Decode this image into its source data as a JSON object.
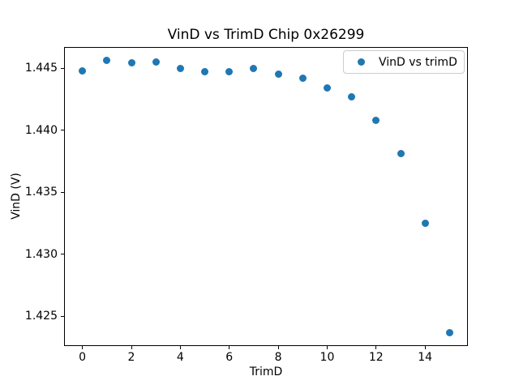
{
  "title": "VinD vs TrimD Chip 0x26299",
  "chart_data": {
    "type": "scatter",
    "title": "VinD vs TrimD Chip 0x26299",
    "xlabel": "TrimD",
    "ylabel": "VinD (V)",
    "series_label": "VinD vs trimD",
    "x": [
      0,
      1,
      2,
      3,
      4,
      5,
      6,
      7,
      8,
      9,
      10,
      11,
      12,
      13,
      14,
      15
    ],
    "y": [
      1.4448,
      1.4456,
      1.4454,
      1.4455,
      1.445,
      1.4447,
      1.4447,
      1.445,
      1.4445,
      1.4442,
      1.4434,
      1.4427,
      1.4408,
      1.4381,
      1.4325,
      1.4237
    ],
    "xticks": [
      0,
      2,
      4,
      6,
      8,
      10,
      12,
      14
    ],
    "yticks": [
      1.425,
      1.43,
      1.435,
      1.44,
      1.445
    ],
    "xlim": [
      -0.75,
      15.75
    ],
    "ylim": [
      1.4226,
      1.4467
    ],
    "grid": false,
    "legend_position": "upper right",
    "marker_color": "#1f77b4",
    "background_color": "#ffffff",
    "axes_edge_color": "#000000"
  }
}
